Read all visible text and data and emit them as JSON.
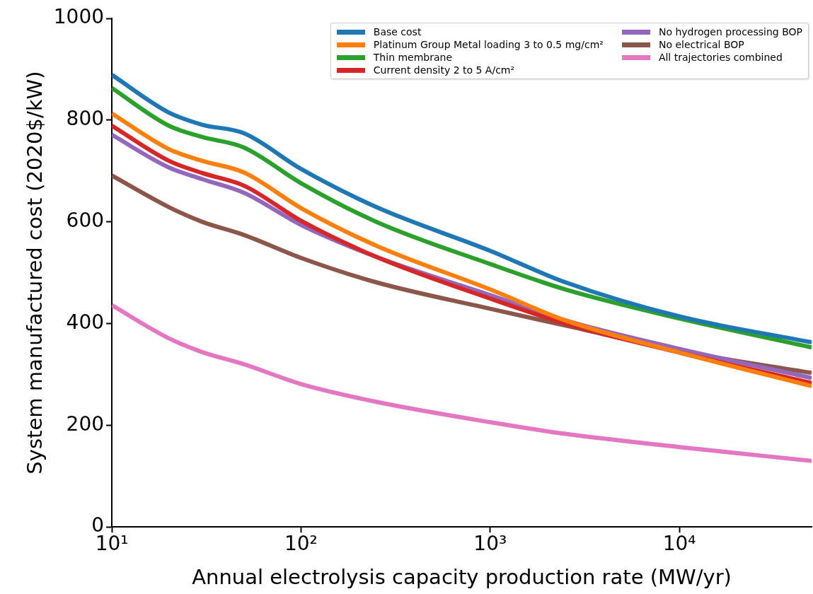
{
  "chart_data": {
    "type": "line",
    "xlabel": "Annual electrolysis capacity production rate (MW/yr)",
    "ylabel": "System manufactured cost (2020$/kW)",
    "x": [
      10,
      20,
      30,
      50,
      100,
      250,
      1000,
      2500,
      10000,
      50000
    ],
    "series": [
      {
        "name": "Base cost",
        "color": "#1f77b4",
        "values": [
          889,
          815,
          791,
          774,
          704,
          629,
          543,
          481,
          414,
          363
        ]
      },
      {
        "name": "Platinum Group Metal loading 3 to 0.5 mg/cm²",
        "color": "#ff7f0e",
        "values": [
          813,
          743,
          720,
          697,
          627,
          553,
          467,
          406,
          343,
          277
        ]
      },
      {
        "name": "Thin membrane",
        "color": "#2ca02c",
        "values": [
          863,
          789,
          767,
          746,
          676,
          600,
          517,
          467,
          410,
          353
        ]
      },
      {
        "name": "Current density 2 to 5 A/cm²",
        "color": "#d62728",
        "values": [
          789,
          720,
          696,
          671,
          602,
          531,
          449,
          400,
          343,
          283
        ]
      },
      {
        "name": "No hydrogen processing BOP",
        "color": "#9467bd",
        "values": [
          771,
          707,
          684,
          657,
          594,
          531,
          456,
          406,
          350,
          293
        ]
      },
      {
        "name": "No electrical BOP",
        "color": "#8c564b",
        "values": [
          691,
          629,
          600,
          574,
          529,
          481,
          429,
          396,
          346,
          303
        ]
      },
      {
        "name": "All trajectories combined",
        "color": "#e377c2",
        "values": [
          436,
          371,
          344,
          320,
          281,
          246,
          206,
          183,
          157,
          130
        ]
      }
    ],
    "xlim": [
      10,
      50000
    ],
    "xticks": [
      {
        "value": 10,
        "label": "10¹"
      },
      {
        "value": 100,
        "label": "10²"
      },
      {
        "value": 1000,
        "label": "10³"
      },
      {
        "value": 10000,
        "label": "10⁴"
      }
    ],
    "ylim": [
      0,
      1000
    ],
    "yticks": [
      0,
      200,
      400,
      600,
      800,
      1000
    ],
    "log": "x",
    "legend": "top right"
  }
}
